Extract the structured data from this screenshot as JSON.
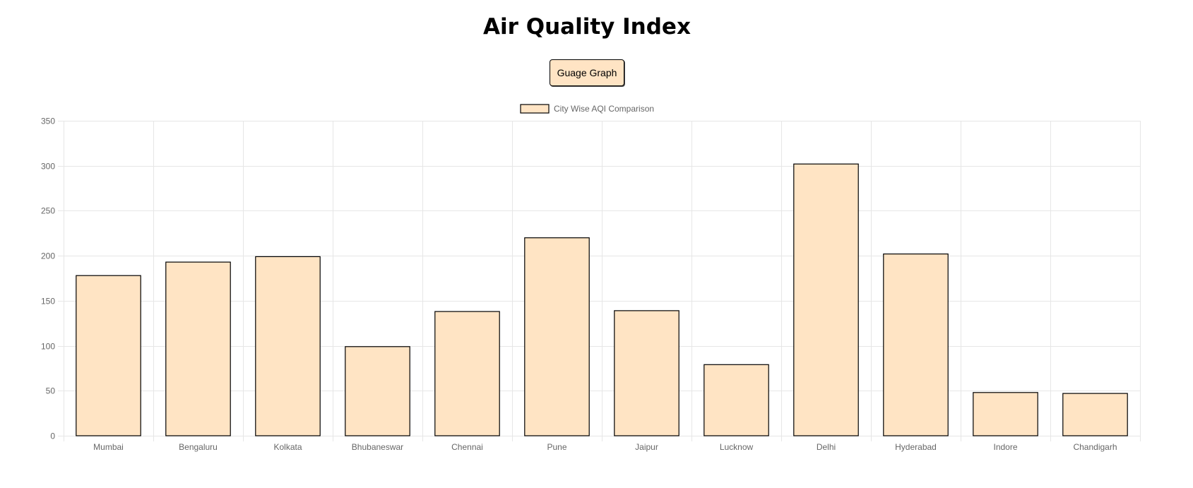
{
  "header": {
    "title": "Air Quality Index"
  },
  "toolbar": {
    "gauge_button_label": "Guage Graph"
  },
  "chart_data": {
    "type": "bar",
    "categories": [
      "Mumbai",
      "Bengaluru",
      "Kolkata",
      "Bhubaneswar",
      "Chennai",
      "Pune",
      "Jaipur",
      "Lucknow",
      "Delhi",
      "Hyderabad",
      "Indore",
      "Chandigarh"
    ],
    "series": [
      {
        "name": "City Wise AQI Comparison",
        "values": [
          178,
          193,
          199,
          99,
          138,
          220,
          139,
          79,
          302,
          202,
          48,
          47
        ]
      }
    ],
    "yticks": [
      0,
      50,
      100,
      150,
      200,
      250,
      300,
      350
    ],
    "ylim": [
      0,
      350
    ],
    "grid": true,
    "legend_position": "top-center",
    "colors": {
      "bar_fill": "#ffe4c4",
      "bar_border": "#000000",
      "grid": "#e6e6e6",
      "tick_text": "#666666"
    }
  }
}
